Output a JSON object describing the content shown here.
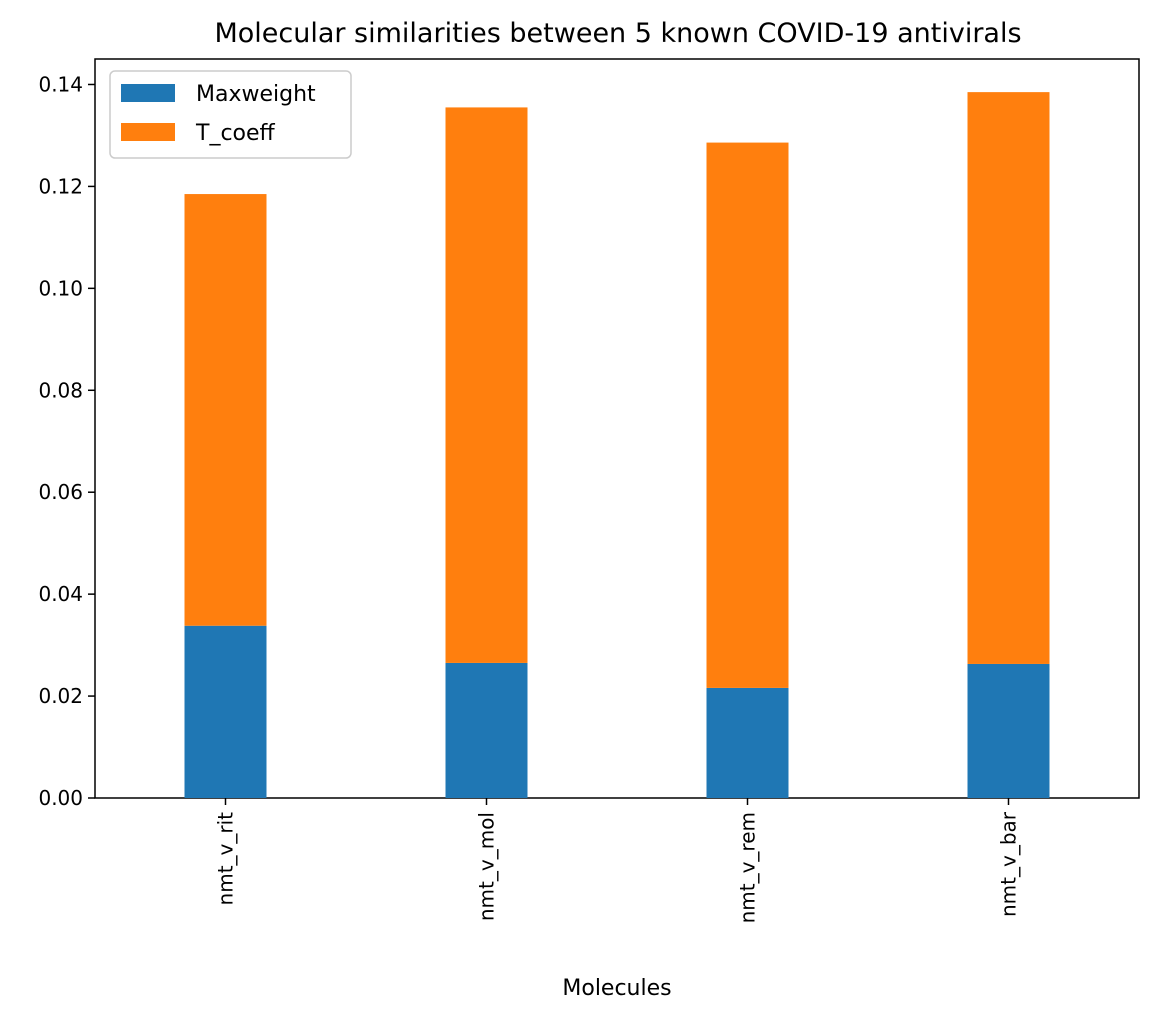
{
  "chart_data": {
    "type": "bar",
    "stacked": true,
    "title": "Molecular similarities between 5 known COVID-19 antivirals",
    "xlabel": "Molecules",
    "ylabel": "",
    "ylim": [
      0,
      0.145
    ],
    "yticks": [
      "0.00",
      "0.02",
      "0.04",
      "0.06",
      "0.08",
      "0.10",
      "0.12",
      "0.14"
    ],
    "categories": [
      "nmt_v_rit",
      "nmt_v_mol",
      "nmt_v_rem",
      "nmt_v_bar"
    ],
    "series": [
      {
        "name": "Maxweight",
        "color": "#1f77b4",
        "values": [
          0.0338,
          0.0265,
          0.0216,
          0.0263
        ]
      },
      {
        "name": "T_coeff",
        "color": "#ff7f0e",
        "values": [
          0.0847,
          0.109,
          0.107,
          0.1122
        ]
      }
    ],
    "grid": false,
    "legend": "top-left"
  }
}
